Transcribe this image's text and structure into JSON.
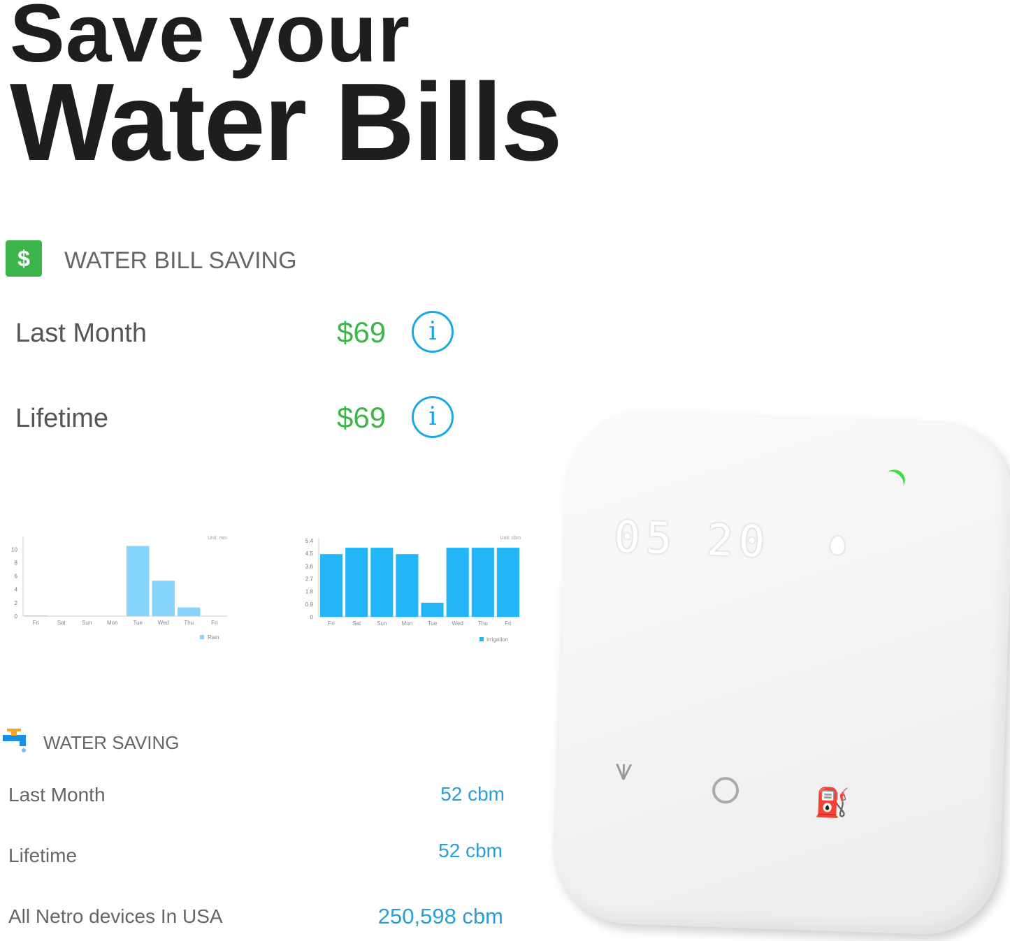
{
  "headline": {
    "line1": "Save your",
    "line2": "Water Bills"
  },
  "bill": {
    "icon": "dollar-icon",
    "title": "WATER BILL SAVING",
    "rows": [
      {
        "label": "Last Month",
        "value": "$69"
      },
      {
        "label": "Lifetime",
        "value": "$69"
      }
    ],
    "info": "i",
    "accent": "#3db54a"
  },
  "water": {
    "icon": "faucet-icon",
    "title": "WATER SAVING",
    "rows": [
      {
        "label": "Last Month",
        "value": "52 cbm"
      },
      {
        "label": "Lifetime",
        "value": "52 cbm"
      },
      {
        "label": "All Netro devices In USA",
        "value": "250,598 cbm"
      }
    ]
  },
  "device": {
    "display_left": "05",
    "display_right": "20",
    "icons": [
      "water-drop-icon",
      "grass-icon",
      "timer-icon",
      "watering-can-icon"
    ],
    "status_color": "#3ce03c"
  },
  "chart_data": [
    {
      "type": "bar",
      "unit": "Unit: mm",
      "categories": [
        "Fri",
        "Sat",
        "Sun",
        "Mon",
        "Tue",
        "Wed",
        "Thu",
        "Fri"
      ],
      "series": [
        {
          "name": "Rain",
          "values": [
            0.1,
            0,
            0,
            0,
            10.5,
            5.3,
            1.3,
            0
          ],
          "color": "#86d4fb"
        }
      ],
      "yticks": [
        "0",
        "2",
        "4",
        "6",
        "8",
        "10"
      ],
      "ylim": [
        0,
        11.5
      ],
      "legend": "bottom-right"
    },
    {
      "type": "bar",
      "unit": "Unit: cbm",
      "categories": [
        "Fri",
        "Sat",
        "Sun",
        "Mon",
        "Tue",
        "Wed",
        "Thu",
        "Fri"
      ],
      "series": [
        {
          "name": "Irrigation",
          "values": [
            4.45,
            4.9,
            4.9,
            4.45,
            1.0,
            4.9,
            4.9,
            4.9
          ],
          "color": "#22b5f8"
        }
      ],
      "yticks": [
        "0",
        "0.9",
        "1.8",
        "2.7",
        "3.6",
        "4.5",
        "5.4"
      ],
      "ylim": [
        0,
        5.4
      ],
      "legend": "bottom-right"
    }
  ]
}
